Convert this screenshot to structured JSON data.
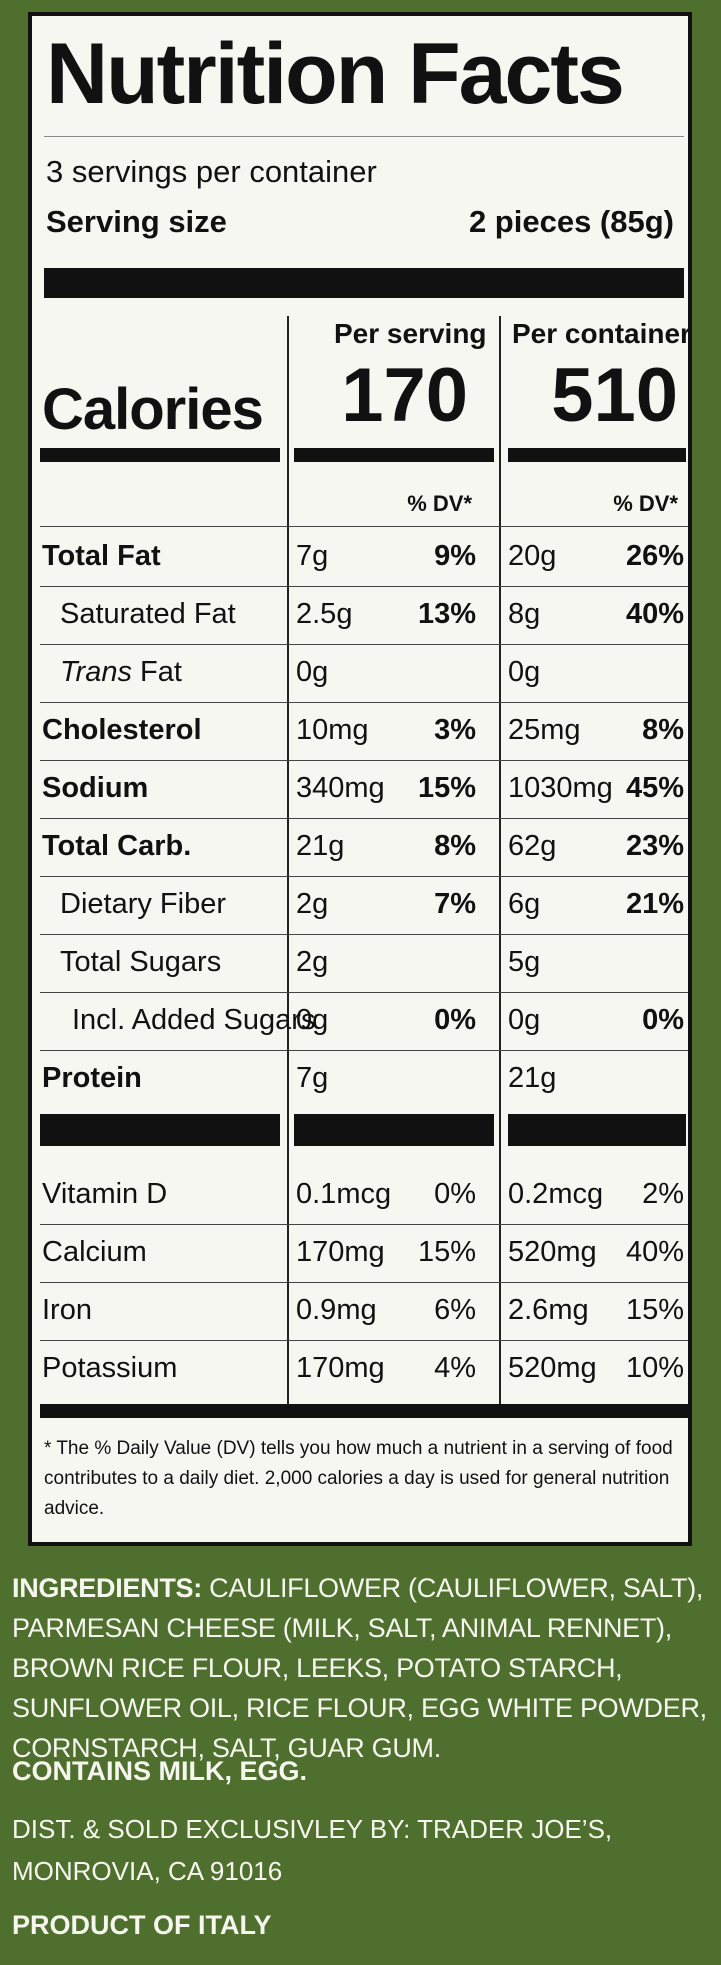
{
  "label": {
    "title": "Nutrition Facts",
    "servings": "3 servings per container",
    "serving_size_label": "Serving size",
    "serving_size_value": "2 pieces (85g)",
    "per_serving": "Per serving",
    "per_container": "Per container",
    "calories_label": "Calories",
    "calories_serving": "170",
    "calories_container": "510",
    "dv_header": "% DV*",
    "nutrients": [
      {
        "name": "Total Fat",
        "s_amt": "7g",
        "s_dv": "9%",
        "c_amt": "20g",
        "c_dv": "26%"
      },
      {
        "name": "Saturated Fat",
        "s_amt": "2.5g",
        "s_dv": "13%",
        "c_amt": "8g",
        "c_dv": "40%"
      },
      {
        "name": "Trans",
        "name_rest": " Fat",
        "s_amt": "0g",
        "s_dv": "",
        "c_amt": "0g",
        "c_dv": ""
      },
      {
        "name": "Cholesterol",
        "s_amt": "10mg",
        "s_dv": "3%",
        "c_amt": "25mg",
        "c_dv": "8%"
      },
      {
        "name": "Sodium",
        "s_amt": "340mg",
        "s_dv": "15%",
        "c_amt": "1030mg",
        "c_dv": "45%"
      },
      {
        "name": "Total Carb.",
        "s_amt": "21g",
        "s_dv": "8%",
        "c_amt": "62g",
        "c_dv": "23%"
      },
      {
        "name": "Dietary Fiber",
        "s_amt": "2g",
        "s_dv": "7%",
        "c_amt": "6g",
        "c_dv": "21%"
      },
      {
        "name": "Total Sugars",
        "s_amt": "2g",
        "s_dv": "",
        "c_amt": "5g",
        "c_dv": ""
      },
      {
        "name": "Incl. Added Sugars",
        "s_amt": "0g",
        "s_dv": "0%",
        "c_amt": "0g",
        "c_dv": "0%"
      },
      {
        "name": "Protein",
        "s_amt": "7g",
        "s_dv": "",
        "c_amt": "21g",
        "c_dv": ""
      }
    ],
    "vitamins": [
      {
        "name": "Vitamin D",
        "s_amt": "0.1mcg",
        "s_dv": "0%",
        "c_amt": "0.2mcg",
        "c_dv": "2%"
      },
      {
        "name": "Calcium",
        "s_amt": "170mg",
        "s_dv": "15%",
        "c_amt": "520mg",
        "c_dv": "40%"
      },
      {
        "name": "Iron",
        "s_amt": "0.9mg",
        "s_dv": "6%",
        "c_amt": "2.6mg",
        "c_dv": "15%"
      },
      {
        "name": "Potassium",
        "s_amt": "170mg",
        "s_dv": "4%",
        "c_amt": "520mg",
        "c_dv": "10%"
      }
    ],
    "footnote": "* The % Daily Value (DV) tells you how much a nutrient in a serving of food contributes to a daily diet. 2,000 calories a day is used for general nutrition advice."
  },
  "package": {
    "ingredients_head": "INGREDIENTS:",
    "ingredients_text": " CAULIFLOWER (CAULIFLOWER, SALT), PARMESAN CHEESE (MILK, SALT, ANIMAL RENNET), BROWN RICE FLOUR, LEEKS, POTATO STARCH, SUNFLOWER OIL, RICE FLOUR, EGG WHITE POWDER, CORNSTARCH, SALT, GUAR GUM.",
    "contains": "CONTAINS MILK, EGG.",
    "dist_line1": "DIST. & SOLD EXCLUSIVLEY BY: TRADER JOE’S,",
    "dist_line2": "MONROVIA, CA 91016",
    "origin": "PRODUCT OF ITALY"
  },
  "colors": {
    "background": "#4f6f2f",
    "panel": "#f7f7f2",
    "ink": "#111111"
  }
}
